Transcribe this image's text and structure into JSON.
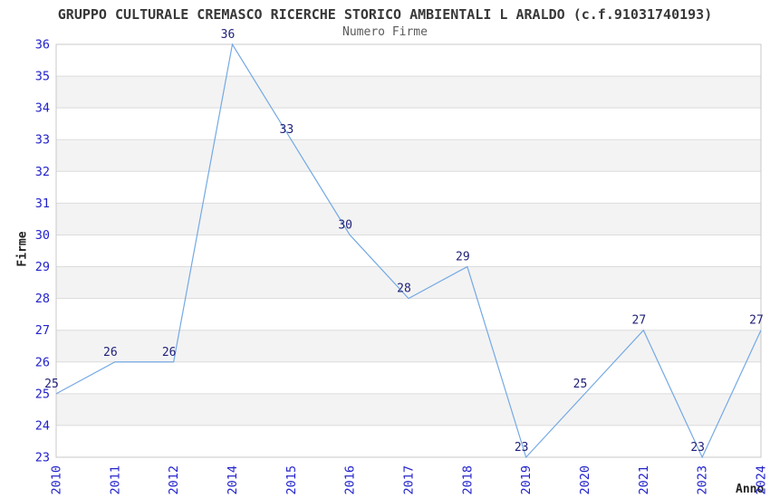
{
  "header": {
    "title": "GRUPPO CULTURALE CREMASCO RICERCHE STORICO AMBIENTALI L ARALDO (c.f.91031740193)",
    "subtitle": "Numero Firme"
  },
  "chart_data": {
    "type": "line",
    "title": "GRUPPO CULTURALE CREMASCO RICERCHE STORICO AMBIENTALI L ARALDO (c.f.91031740193)",
    "subtitle": "Numero Firme",
    "xlabel": "Anno",
    "ylabel": "Firme",
    "categories": [
      "2010",
      "2011",
      "2012",
      "2014",
      "2015",
      "2016",
      "2017",
      "2018",
      "2019",
      "2020",
      "2021",
      "2023",
      "2024"
    ],
    "values": [
      25,
      26,
      26,
      36,
      33,
      30,
      28,
      29,
      23,
      25,
      27,
      23,
      27
    ],
    "data_labels_shown": true,
    "ylim": [
      23,
      36
    ],
    "ytick_step": 1,
    "x_tick_rotation": -90,
    "grid": "horizontal",
    "alternating_bands": true,
    "legend": "none",
    "markers": "none",
    "colors": {
      "line": "#74a9e4",
      "tick_labels": "#2222cc",
      "data_labels": "#1f1f78",
      "gridline": "#dcdcdc",
      "band": "#f3f3f3",
      "plot_border": "#c9c9c9",
      "title": "#383838",
      "subtitle": "#5a5a5a",
      "axis_titles": "#222222"
    }
  }
}
